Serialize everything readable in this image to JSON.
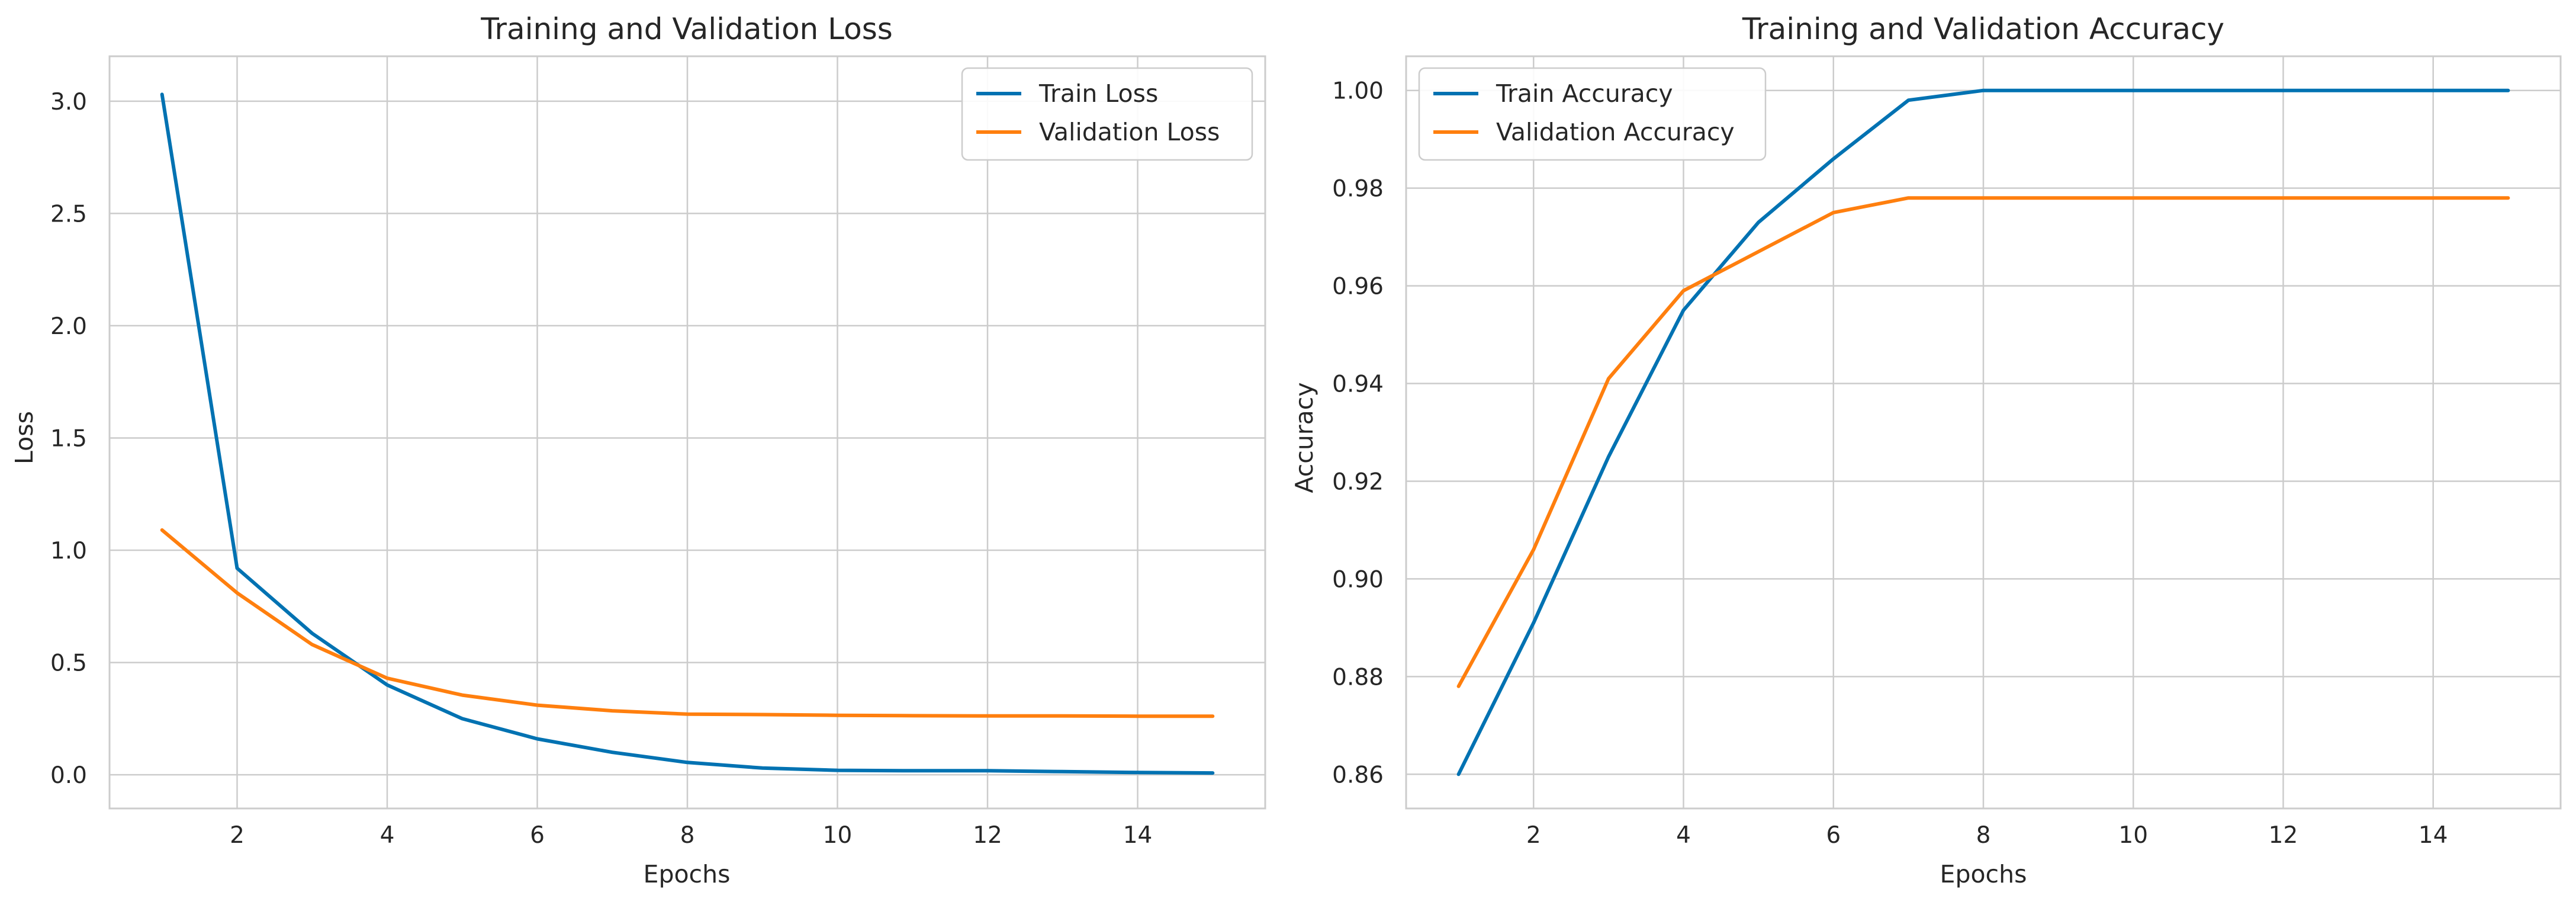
{
  "chart_data": [
    {
      "type": "line",
      "title": "Training and Validation Loss",
      "xlabel": "Epochs",
      "ylabel": "Loss",
      "xlim": [
        0.3,
        15.7
      ],
      "ylim": [
        -0.15,
        3.2
      ],
      "xticks": [
        2,
        4,
        6,
        8,
        10,
        12,
        14
      ],
      "yticks": [
        0.0,
        0.5,
        1.0,
        1.5,
        2.0,
        2.5,
        3.0
      ],
      "ytick_labels": [
        "0.0",
        "0.5",
        "1.0",
        "1.5",
        "2.0",
        "2.5",
        "3.0"
      ],
      "grid": true,
      "legend": "upper right",
      "x": [
        1,
        2,
        3,
        4,
        5,
        6,
        7,
        8,
        9,
        10,
        11,
        12,
        13,
        14,
        15
      ],
      "series": [
        {
          "name": "Train Loss",
          "color": "#0072b2",
          "values": [
            3.03,
            0.92,
            0.63,
            0.4,
            0.25,
            0.16,
            0.1,
            0.055,
            0.03,
            0.02,
            0.018,
            0.018,
            0.014,
            0.01,
            0.008
          ]
        },
        {
          "name": "Validation Loss",
          "color": "#ff7f0e",
          "values": [
            1.09,
            0.81,
            0.58,
            0.43,
            0.355,
            0.31,
            0.285,
            0.27,
            0.268,
            0.265,
            0.263,
            0.262,
            0.262,
            0.261,
            0.261
          ]
        }
      ]
    },
    {
      "type": "line",
      "title": "Training and Validation Accuracy",
      "xlabel": "Epochs",
      "ylabel": "Accuracy",
      "xlim": [
        0.3,
        15.7
      ],
      "ylim": [
        0.853,
        1.007
      ],
      "xticks": [
        2,
        4,
        6,
        8,
        10,
        12,
        14
      ],
      "yticks": [
        0.86,
        0.88,
        0.9,
        0.92,
        0.94,
        0.96,
        0.98,
        1.0
      ],
      "ytick_labels": [
        "0.86",
        "0.88",
        "0.90",
        "0.92",
        "0.94",
        "0.96",
        "0.98",
        "1.00"
      ],
      "grid": true,
      "legend": "upper left",
      "x": [
        1,
        2,
        3,
        4,
        5,
        6,
        7,
        8,
        9,
        10,
        11,
        12,
        13,
        14,
        15
      ],
      "series": [
        {
          "name": "Train Accuracy",
          "color": "#0072b2",
          "values": [
            0.86,
            0.891,
            0.925,
            0.955,
            0.973,
            0.986,
            0.998,
            1.0,
            1.0,
            1.0,
            1.0,
            1.0,
            1.0,
            1.0,
            1.0
          ]
        },
        {
          "name": "Validation Accuracy",
          "color": "#ff7f0e",
          "values": [
            0.878,
            0.906,
            0.941,
            0.959,
            0.967,
            0.975,
            0.978,
            0.978,
            0.978,
            0.978,
            0.978,
            0.978,
            0.978,
            0.978,
            0.978
          ]
        }
      ]
    }
  ]
}
